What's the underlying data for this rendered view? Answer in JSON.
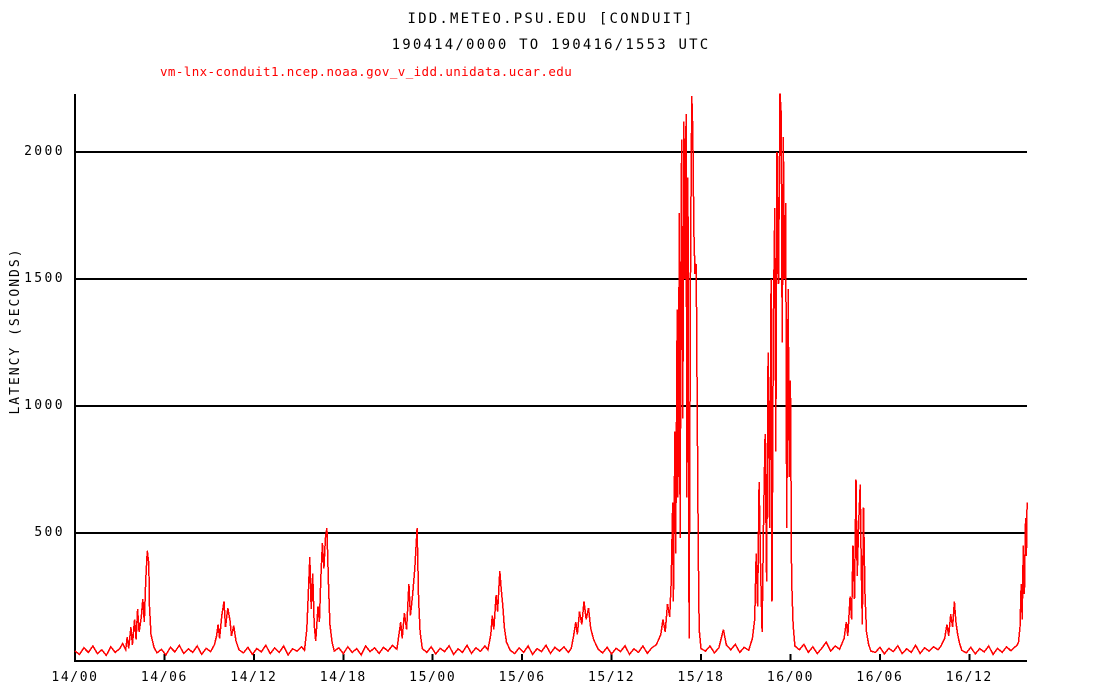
{
  "header": {
    "title": "IDD.METEO.PSU.EDU [CONDUIT]",
    "subtitle": "190414/0000 TO 190416/1553 UTC"
  },
  "chart_data": {
    "type": "line",
    "title": "IDD.METEO.PSU.EDU [CONDUIT]",
    "subtitle": "190414/0000 TO 190416/1553 UTC",
    "series_name": "vm-lnx-conduit1.ncep.noaa.gov_v_idd.unidata.ucar.edu",
    "ylabel": "LATENCY (SECONDS)",
    "x_unit": "hours since 190414/0000 UTC (labels are day/hour)",
    "x_range_hours": [
      0,
      63.88
    ],
    "ylim": [
      0,
      2233
    ],
    "grid": "horizontal-only",
    "legend_position": "top-left",
    "line_color": "#ff0000",
    "axis_color": "#000000",
    "background_color": "#ffffff",
    "y_ticks": [
      {
        "v": 500,
        "label": "500"
      },
      {
        "v": 1000,
        "label": "1000"
      },
      {
        "v": 1500,
        "label": "1500"
      },
      {
        "v": 2000,
        "label": "2000"
      }
    ],
    "x_ticks": [
      {
        "t": 0,
        "label": "14/00"
      },
      {
        "t": 6,
        "label": "14/06"
      },
      {
        "t": 12,
        "label": "14/12"
      },
      {
        "t": 18,
        "label": "14/18"
      },
      {
        "t": 24,
        "label": "15/00"
      },
      {
        "t": 30,
        "label": "15/06"
      },
      {
        "t": 36,
        "label": "15/12"
      },
      {
        "t": 42,
        "label": "15/18"
      },
      {
        "t": 48,
        "label": "16/00"
      },
      {
        "t": 54,
        "label": "16/06"
      },
      {
        "t": 60,
        "label": "16/12"
      }
    ],
    "points": [
      [
        0.0,
        35
      ],
      [
        0.3,
        22
      ],
      [
        0.6,
        48
      ],
      [
        0.9,
        30
      ],
      [
        1.2,
        55
      ],
      [
        1.5,
        25
      ],
      [
        1.8,
        40
      ],
      [
        2.1,
        18
      ],
      [
        2.4,
        52
      ],
      [
        2.7,
        30
      ],
      [
        3.0,
        45
      ],
      [
        3.2,
        65
      ],
      [
        3.4,
        40
      ],
      [
        3.5,
        90
      ],
      [
        3.6,
        45
      ],
      [
        3.75,
        130
      ],
      [
        3.85,
        60
      ],
      [
        4.0,
        160
      ],
      [
        4.1,
        80
      ],
      [
        4.2,
        200
      ],
      [
        4.3,
        110
      ],
      [
        4.45,
        170
      ],
      [
        4.55,
        240
      ],
      [
        4.65,
        150
      ],
      [
        4.75,
        320
      ],
      [
        4.85,
        430
      ],
      [
        4.95,
        380
      ],
      [
        5.0,
        210
      ],
      [
        5.1,
        100
      ],
      [
        5.3,
        50
      ],
      [
        5.5,
        28
      ],
      [
        5.8,
        42
      ],
      [
        6.1,
        20
      ],
      [
        6.4,
        50
      ],
      [
        6.7,
        32
      ],
      [
        7.0,
        58
      ],
      [
        7.3,
        25
      ],
      [
        7.6,
        44
      ],
      [
        7.9,
        30
      ],
      [
        8.2,
        55
      ],
      [
        8.5,
        22
      ],
      [
        8.8,
        46
      ],
      [
        9.1,
        33
      ],
      [
        9.35,
        60
      ],
      [
        9.5,
        95
      ],
      [
        9.6,
        140
      ],
      [
        9.7,
        85
      ],
      [
        9.85,
        175
      ],
      [
        10.0,
        230
      ],
      [
        10.1,
        130
      ],
      [
        10.25,
        205
      ],
      [
        10.4,
        155
      ],
      [
        10.5,
        95
      ],
      [
        10.65,
        135
      ],
      [
        10.8,
        75
      ],
      [
        11.0,
        40
      ],
      [
        11.3,
        28
      ],
      [
        11.6,
        50
      ],
      [
        11.9,
        22
      ],
      [
        12.2,
        45
      ],
      [
        12.5,
        32
      ],
      [
        12.8,
        58
      ],
      [
        13.1,
        25
      ],
      [
        13.4,
        48
      ],
      [
        13.7,
        30
      ],
      [
        14.0,
        55
      ],
      [
        14.3,
        20
      ],
      [
        14.6,
        44
      ],
      [
        14.9,
        35
      ],
      [
        15.2,
        52
      ],
      [
        15.4,
        38
      ],
      [
        15.55,
        120
      ],
      [
        15.65,
        260
      ],
      [
        15.75,
        405
      ],
      [
        15.85,
        200
      ],
      [
        15.95,
        340
      ],
      [
        16.05,
        140
      ],
      [
        16.15,
        75
      ],
      [
        16.3,
        210
      ],
      [
        16.4,
        150
      ],
      [
        16.5,
        330
      ],
      [
        16.6,
        460
      ],
      [
        16.7,
        360
      ],
      [
        16.8,
        480
      ],
      [
        16.9,
        520
      ],
      [
        17.0,
        310
      ],
      [
        17.1,
        140
      ],
      [
        17.25,
        70
      ],
      [
        17.4,
        35
      ],
      [
        17.7,
        48
      ],
      [
        18.0,
        25
      ],
      [
        18.3,
        52
      ],
      [
        18.6,
        30
      ],
      [
        18.9,
        45
      ],
      [
        19.2,
        20
      ],
      [
        19.5,
        55
      ],
      [
        19.8,
        33
      ],
      [
        20.1,
        48
      ],
      [
        20.4,
        26
      ],
      [
        20.7,
        50
      ],
      [
        21.0,
        35
      ],
      [
        21.3,
        58
      ],
      [
        21.6,
        42
      ],
      [
        21.85,
        150
      ],
      [
        21.95,
        85
      ],
      [
        22.1,
        185
      ],
      [
        22.25,
        120
      ],
      [
        22.4,
        300
      ],
      [
        22.5,
        175
      ],
      [
        22.65,
        255
      ],
      [
        22.8,
        360
      ],
      [
        22.95,
        520
      ],
      [
        23.05,
        240
      ],
      [
        23.15,
        110
      ],
      [
        23.3,
        45
      ],
      [
        23.6,
        30
      ],
      [
        23.9,
        52
      ],
      [
        24.2,
        24
      ],
      [
        24.5,
        46
      ],
      [
        24.8,
        33
      ],
      [
        25.1,
        56
      ],
      [
        25.4,
        22
      ],
      [
        25.7,
        44
      ],
      [
        26.0,
        30
      ],
      [
        26.3,
        58
      ],
      [
        26.6,
        26
      ],
      [
        26.9,
        48
      ],
      [
        27.2,
        34
      ],
      [
        27.5,
        55
      ],
      [
        27.7,
        40
      ],
      [
        27.9,
        100
      ],
      [
        28.0,
        175
      ],
      [
        28.1,
        120
      ],
      [
        28.25,
        255
      ],
      [
        28.35,
        190
      ],
      [
        28.5,
        350
      ],
      [
        28.6,
        275
      ],
      [
        28.7,
        215
      ],
      [
        28.8,
        130
      ],
      [
        28.95,
        70
      ],
      [
        29.2,
        38
      ],
      [
        29.5,
        25
      ],
      [
        29.8,
        48
      ],
      [
        30.1,
        30
      ],
      [
        30.4,
        55
      ],
      [
        30.7,
        22
      ],
      [
        31.0,
        45
      ],
      [
        31.3,
        33
      ],
      [
        31.6,
        58
      ],
      [
        31.9,
        26
      ],
      [
        32.2,
        50
      ],
      [
        32.5,
        35
      ],
      [
        32.8,
        52
      ],
      [
        33.1,
        30
      ],
      [
        33.3,
        46
      ],
      [
        33.45,
        95
      ],
      [
        33.6,
        150
      ],
      [
        33.7,
        100
      ],
      [
        33.85,
        190
      ],
      [
        34.0,
        140
      ],
      [
        34.15,
        230
      ],
      [
        34.3,
        160
      ],
      [
        34.45,
        205
      ],
      [
        34.6,
        125
      ],
      [
        34.8,
        80
      ],
      [
        35.1,
        42
      ],
      [
        35.4,
        28
      ],
      [
        35.7,
        50
      ],
      [
        36.0,
        24
      ],
      [
        36.3,
        46
      ],
      [
        36.6,
        33
      ],
      [
        36.9,
        56
      ],
      [
        37.2,
        22
      ],
      [
        37.5,
        44
      ],
      [
        37.8,
        30
      ],
      [
        38.1,
        55
      ],
      [
        38.4,
        26
      ],
      [
        38.7,
        48
      ],
      [
        39.0,
        60
      ],
      [
        39.3,
        100
      ],
      [
        39.45,
        160
      ],
      [
        39.6,
        110
      ],
      [
        39.75,
        220
      ],
      [
        39.9,
        170
      ],
      [
        40.0,
        310
      ],
      [
        40.1,
        620
      ],
      [
        40.15,
        230
      ],
      [
        40.25,
        900
      ],
      [
        40.3,
        420
      ],
      [
        40.4,
        1380
      ],
      [
        40.45,
        640
      ],
      [
        40.55,
        1760
      ],
      [
        40.6,
        480
      ],
      [
        40.7,
        2050
      ],
      [
        40.78,
        950
      ],
      [
        40.85,
        2120
      ],
      [
        40.92,
        1500
      ],
      [
        41.0,
        2150
      ],
      [
        41.05,
        640
      ],
      [
        41.12,
        1900
      ],
      [
        41.2,
        85
      ],
      [
        41.3,
        1620
      ],
      [
        41.38,
        2220
      ],
      [
        41.45,
        2080
      ],
      [
        41.52,
        1680
      ],
      [
        41.6,
        1520
      ],
      [
        41.68,
        1560
      ],
      [
        41.75,
        950
      ],
      [
        41.82,
        420
      ],
      [
        41.88,
        120
      ],
      [
        42.0,
        45
      ],
      [
        42.3,
        35
      ],
      [
        42.6,
        55
      ],
      [
        42.9,
        28
      ],
      [
        43.2,
        48
      ],
      [
        43.5,
        120
      ],
      [
        43.7,
        60
      ],
      [
        44.0,
        40
      ],
      [
        44.3,
        62
      ],
      [
        44.6,
        30
      ],
      [
        44.9,
        50
      ],
      [
        45.2,
        38
      ],
      [
        45.45,
        85
      ],
      [
        45.6,
        160
      ],
      [
        45.7,
        420
      ],
      [
        45.8,
        210
      ],
      [
        45.9,
        700
      ],
      [
        46.0,
        360
      ],
      [
        46.1,
        110
      ],
      [
        46.2,
        560
      ],
      [
        46.3,
        890
      ],
      [
        46.4,
        310
      ],
      [
        46.5,
        1210
      ],
      [
        46.6,
        520
      ],
      [
        46.7,
        1500
      ],
      [
        46.76,
        230
      ],
      [
        46.85,
        1320
      ],
      [
        46.95,
        1780
      ],
      [
        47.02,
        820
      ],
      [
        47.1,
        2000
      ],
      [
        47.2,
        1480
      ],
      [
        47.3,
        2230
      ],
      [
        47.38,
        2150
      ],
      [
        47.45,
        1250
      ],
      [
        47.52,
        2060
      ],
      [
        47.6,
        1500
      ],
      [
        47.68,
        1800
      ],
      [
        47.75,
        520
      ],
      [
        47.85,
        1460
      ],
      [
        47.92,
        720
      ],
      [
        48.0,
        1100
      ],
      [
        48.08,
        320
      ],
      [
        48.18,
        140
      ],
      [
        48.3,
        55
      ],
      [
        48.6,
        40
      ],
      [
        48.9,
        62
      ],
      [
        49.2,
        30
      ],
      [
        49.5,
        52
      ],
      [
        49.8,
        25
      ],
      [
        50.1,
        46
      ],
      [
        50.4,
        70
      ],
      [
        50.7,
        35
      ],
      [
        51.0,
        55
      ],
      [
        51.3,
        42
      ],
      [
        51.6,
        85
      ],
      [
        51.75,
        150
      ],
      [
        51.85,
        95
      ],
      [
        52.0,
        250
      ],
      [
        52.1,
        160
      ],
      [
        52.2,
        450
      ],
      [
        52.3,
        240
      ],
      [
        52.4,
        710
      ],
      [
        52.48,
        330
      ],
      [
        52.58,
        540
      ],
      [
        52.68,
        690
      ],
      [
        52.75,
        380
      ],
      [
        52.82,
        140
      ],
      [
        52.9,
        600
      ],
      [
        53.0,
        260
      ],
      [
        53.1,
        110
      ],
      [
        53.25,
        60
      ],
      [
        53.4,
        35
      ],
      [
        53.7,
        30
      ],
      [
        54.0,
        50
      ],
      [
        54.3,
        24
      ],
      [
        54.6,
        46
      ],
      [
        54.9,
        33
      ],
      [
        55.2,
        56
      ],
      [
        55.5,
        25
      ],
      [
        55.8,
        44
      ],
      [
        56.1,
        30
      ],
      [
        56.4,
        58
      ],
      [
        56.7,
        26
      ],
      [
        57.0,
        48
      ],
      [
        57.3,
        35
      ],
      [
        57.6,
        52
      ],
      [
        57.9,
        40
      ],
      [
        58.1,
        55
      ],
      [
        58.35,
        85
      ],
      [
        58.5,
        140
      ],
      [
        58.62,
        95
      ],
      [
        58.75,
        180
      ],
      [
        58.88,
        130
      ],
      [
        59.0,
        230
      ],
      [
        59.1,
        150
      ],
      [
        59.22,
        100
      ],
      [
        59.35,
        65
      ],
      [
        59.5,
        38
      ],
      [
        59.8,
        28
      ],
      [
        60.1,
        50
      ],
      [
        60.4,
        24
      ],
      [
        60.7,
        45
      ],
      [
        61.0,
        32
      ],
      [
        61.3,
        55
      ],
      [
        61.6,
        22
      ],
      [
        61.9,
        46
      ],
      [
        62.2,
        30
      ],
      [
        62.5,
        52
      ],
      [
        62.8,
        36
      ],
      [
        63.0,
        48
      ],
      [
        63.2,
        58
      ],
      [
        63.3,
        70
      ],
      [
        63.4,
        130
      ],
      [
        63.48,
        300
      ],
      [
        63.55,
        160
      ],
      [
        63.62,
        450
      ],
      [
        63.7,
        260
      ],
      [
        63.78,
        560
      ],
      [
        63.83,
        410
      ],
      [
        63.88,
        620
      ]
    ]
  }
}
